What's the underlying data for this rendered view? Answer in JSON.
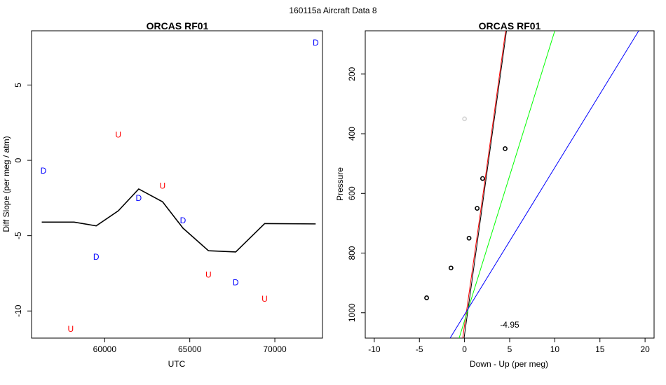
{
  "suptitle": "160115a   Aircraft Data 8",
  "chart_data": [
    {
      "type": "line",
      "title": "ORCAS RF01",
      "xlabel": "UTC",
      "ylabel": "Diff Slope (per meg / atm)",
      "xlim": [
        55700,
        72800
      ],
      "ylim": [
        -11.8,
        8.6
      ],
      "xticks": [
        60000,
        65000,
        70000
      ],
      "yticks": [
        5,
        0,
        -5,
        -10
      ],
      "line": {
        "color": "#000000",
        "x": [
          56300,
          58200,
          59500,
          60800,
          62000,
          63400,
          64600,
          66100,
          67700,
          69400,
          72400
        ],
        "y": [
          -4.1,
          -4.1,
          -4.35,
          -3.35,
          -1.9,
          -2.75,
          -4.5,
          -6.0,
          -6.08,
          -4.2,
          -4.22
        ]
      },
      "points": [
        {
          "label": "D",
          "x": 56400,
          "y": -0.7,
          "color": "#0000ff"
        },
        {
          "label": "U",
          "x": 58000,
          "y": -11.2,
          "color": "#ff0000"
        },
        {
          "label": "D",
          "x": 59500,
          "y": -6.4,
          "color": "#0000ff"
        },
        {
          "label": "U",
          "x": 60800,
          "y": 1.7,
          "color": "#ff0000"
        },
        {
          "label": "D",
          "x": 62000,
          "y": -2.5,
          "color": "#0000ff"
        },
        {
          "label": "U",
          "x": 63400,
          "y": -1.7,
          "color": "#ff0000"
        },
        {
          "label": "D",
          "x": 64600,
          "y": -4.0,
          "color": "#0000ff"
        },
        {
          "label": "U",
          "x": 66100,
          "y": -7.6,
          "color": "#ff0000"
        },
        {
          "label": "D",
          "x": 67700,
          "y": -8.1,
          "color": "#0000ff"
        },
        {
          "label": "U",
          "x": 69400,
          "y": -9.2,
          "color": "#ff0000"
        },
        {
          "label": "D",
          "x": 72400,
          "y": 7.8,
          "color": "#0000ff"
        }
      ]
    },
    {
      "type": "scatter",
      "title": "ORCAS RF01",
      "xlabel": "Down - Up (per meg)",
      "ylabel": "Pressure",
      "xlim": [
        -11,
        21
      ],
      "ylim": [
        1085,
        55
      ],
      "xticks": [
        -10,
        -5,
        0,
        5,
        10,
        15,
        20
      ],
      "yticks": [
        200,
        400,
        600,
        800,
        1000
      ],
      "points": [
        {
          "x": 0.0,
          "y": 350,
          "color": "#d3d3d3"
        },
        {
          "x": 4.5,
          "y": 450,
          "color": "#000000"
        },
        {
          "x": 2.0,
          "y": 550,
          "color": "#000000"
        },
        {
          "x": 1.4,
          "y": 650,
          "color": "#000000"
        },
        {
          "x": 0.5,
          "y": 750,
          "color": "#000000"
        },
        {
          "x": -1.5,
          "y": 850,
          "color": "#000000"
        },
        {
          "x": -4.2,
          "y": 950,
          "color": "#000000"
        }
      ],
      "lines": [
        {
          "color": "#000000",
          "x": [
            -0.05,
            2.3,
            4.65
          ],
          "y": [
            1085,
            570,
            55
          ]
        },
        {
          "color": "#ff0000",
          "x": [
            -0.2,
            2.2,
            4.55
          ],
          "y": [
            1085,
            570,
            55
          ]
        },
        {
          "color": "#00ff00",
          "x": [
            -0.6,
            4.7,
            10.0
          ],
          "y": [
            1085,
            570,
            55
          ]
        },
        {
          "color": "#0000ff",
          "x": [
            -1.6,
            8.85,
            19.3
          ],
          "y": [
            1085,
            570,
            55
          ]
        }
      ],
      "annotation": {
        "text": "-4.95",
        "x": 5.0,
        "y": 1040
      }
    }
  ]
}
